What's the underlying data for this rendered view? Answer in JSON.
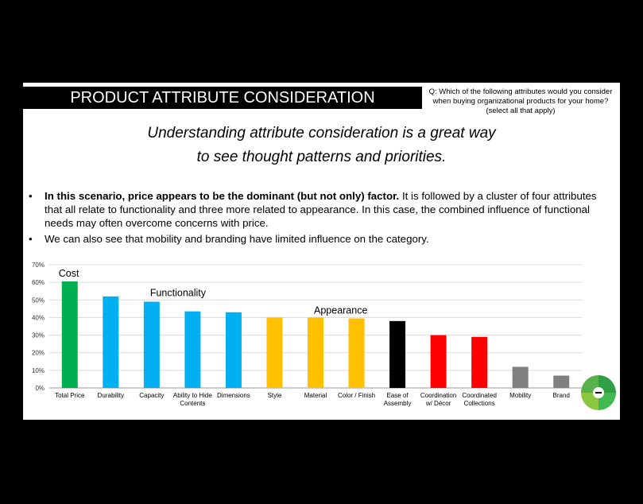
{
  "header": {
    "title": "PRODUCT ATTRIBUTE CONSIDERATION",
    "question": "Q:  Which of the following attributes would you consider when buying organizational products for your home? (select all that apply)"
  },
  "subtitle": {
    "line1": "Understanding attribute consideration is a great way",
    "line2": "to see thought patterns and priorities."
  },
  "bullets": [
    {
      "bold": "In this scenario, price appears to be the dominant (but not only) factor.",
      "text": "  It is followed by a cluster of four attributes that all relate to functionality and three more related to appearance.  In this case, the combined influence of functional needs may often overcome concerns with price."
    },
    {
      "bold": "",
      "text": "We can also see that mobility and branding have limited influence on the category."
    }
  ],
  "chart_data": {
    "type": "bar",
    "categories": [
      "Total Price",
      "Durability",
      "Capacity",
      "Ability to Hide Contents",
      "Dimensions",
      "Style",
      "Material",
      "Color / Finish",
      "Ease of Assembly",
      "Coordination w/ Décor",
      "Coordinated Collections",
      "Mobility",
      "Brand"
    ],
    "category_lines": [
      [
        "Total Price"
      ],
      [
        "Durability"
      ],
      [
        "Capacity"
      ],
      [
        "Ability to Hide",
        "Contents"
      ],
      [
        "Dimensions"
      ],
      [
        "Style"
      ],
      [
        "Material"
      ],
      [
        "Color / Finish"
      ],
      [
        "Ease of",
        "Assembly"
      ],
      [
        "Coordination",
        "w/ Décor"
      ],
      [
        "Coordinated",
        "Collections"
      ],
      [
        "Mobility"
      ],
      [
        "Brand"
      ]
    ],
    "values": [
      60.5,
      52,
      49,
      43.5,
      43,
      40,
      40,
      39.5,
      38,
      30,
      29,
      12,
      7
    ],
    "colors": [
      "#00b050",
      "#00b0f0",
      "#00b0f0",
      "#00b0f0",
      "#00b0f0",
      "#ffc000",
      "#ffc000",
      "#ffc000",
      "#000000",
      "#ff0000",
      "#ff0000",
      "#808080",
      "#808080"
    ],
    "ylim": [
      0,
      70
    ],
    "yticks": [
      "0%",
      "10%",
      "20%",
      "30%",
      "40%",
      "50%",
      "60%",
      "70%"
    ],
    "grid": true,
    "annotations": [
      {
        "text": "Cost",
        "category": "Total Price",
        "level": 65
      },
      {
        "text": "Functionality",
        "category": "Capacity",
        "level": 54
      },
      {
        "text": "Appearance",
        "category": "Material",
        "level": 44
      }
    ]
  }
}
